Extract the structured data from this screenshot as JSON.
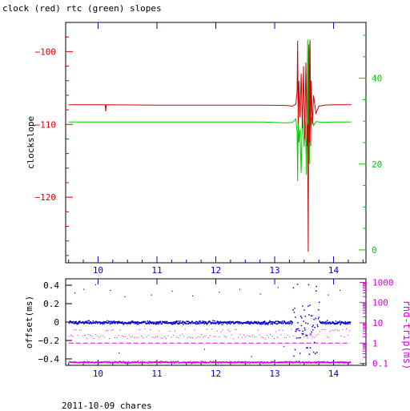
{
  "title": "clock (red) rtc (green) slopes",
  "footer": "2011-10-09 chares",
  "colors": {
    "red": "#d00000",
    "green": "#00cc00",
    "blue": "#0000cc",
    "magenta": "#dd00dd",
    "frame": "#000000"
  },
  "chart_data": [
    {
      "type": "line",
      "name": "slopes",
      "ylabel": "clockslope",
      "xlim": [
        9.45,
        14.55
      ],
      "ylim": [
        -129.0,
        -96.0
      ],
      "y2lim": [
        -3.0,
        53.0
      ],
      "x_ticks": [
        10,
        11,
        12,
        13,
        14
      ],
      "x_tick_labels": [
        "10",
        "11",
        "12",
        "13",
        "14"
      ],
      "y_ticks": [
        -100,
        -110,
        -120
      ],
      "y_tick_labels": [
        "−100",
        "−110",
        "−120"
      ],
      "y2_ticks": [
        40,
        20,
        0
      ],
      "y2_tick_labels": [
        "40",
        "20",
        "0"
      ],
      "series": [
        {
          "name": "clock",
          "color": "red",
          "axis": "left",
          "points": [
            [
              9.5,
              -107.3
            ],
            [
              10.0,
              -107.3
            ],
            [
              10.12,
              -107.3
            ],
            [
              10.13,
              -108.2
            ],
            [
              10.14,
              -107.3
            ],
            [
              11.0,
              -107.35
            ],
            [
              12.0,
              -107.35
            ],
            [
              12.8,
              -107.35
            ],
            [
              13.2,
              -107.4
            ],
            [
              13.3,
              -107.5
            ],
            [
              13.36,
              -107.2
            ],
            [
              13.38,
              -105.5
            ],
            [
              13.39,
              -98.5
            ],
            [
              13.4,
              -110.0
            ],
            [
              13.41,
              -104.0
            ],
            [
              13.43,
              -109.0
            ],
            [
              13.45,
              -103.0
            ],
            [
              13.47,
              -110.5
            ],
            [
              13.49,
              -102.0
            ],
            [
              13.51,
              -112.0
            ],
            [
              13.53,
              -101.5
            ],
            [
              13.55,
              -113.0
            ],
            [
              13.56,
              -110.0
            ],
            [
              13.57,
              -127.5
            ],
            [
              13.58,
              -99.0
            ],
            [
              13.59,
              -112.5
            ],
            [
              13.6,
              -98.5
            ],
            [
              13.61,
              -113.0
            ],
            [
              13.62,
              -104.0
            ],
            [
              13.64,
              -110.0
            ],
            [
              13.66,
              -106.0
            ],
            [
              13.7,
              -108.5
            ],
            [
              13.75,
              -107.5
            ],
            [
              13.85,
              -107.35
            ],
            [
              14.0,
              -107.3
            ],
            [
              14.3,
              -107.3
            ]
          ]
        },
        {
          "name": "rtc",
          "color": "green",
          "axis": "right",
          "points": [
            [
              9.5,
              29.8
            ],
            [
              10.0,
              29.8
            ],
            [
              11.0,
              29.8
            ],
            [
              12.0,
              29.8
            ],
            [
              12.8,
              29.8
            ],
            [
              13.2,
              29.6
            ],
            [
              13.3,
              29.7
            ],
            [
              13.36,
              30.5
            ],
            [
              13.38,
              27.5
            ],
            [
              13.39,
              16.0
            ],
            [
              13.4,
              31.5
            ],
            [
              13.41,
              25.0
            ],
            [
              13.43,
              28.0
            ],
            [
              13.45,
              18.0
            ],
            [
              13.47,
              32.0
            ],
            [
              13.5,
              24.0
            ],
            [
              13.52,
              30.0
            ],
            [
              13.54,
              17.5
            ],
            [
              13.56,
              49.0
            ],
            [
              13.57,
              15.0
            ],
            [
              13.58,
              47.0
            ],
            [
              13.59,
              20.0
            ],
            [
              13.6,
              49.0
            ],
            [
              13.61,
              28.0
            ],
            [
              13.63,
              31.0
            ],
            [
              13.66,
              29.0
            ],
            [
              13.7,
              29.9
            ],
            [
              13.8,
              29.7
            ],
            [
              14.0,
              29.8
            ],
            [
              14.3,
              29.8
            ]
          ]
        }
      ]
    },
    {
      "type": "scatter",
      "name": "offsets",
      "ylabel": "offset(ms)",
      "y2label": "rnd-trip(ms)",
      "y2scale": "log",
      "xlim": [
        9.45,
        14.55
      ],
      "ylim": [
        -0.47,
        0.47
      ],
      "y2lim": [
        0.08,
        1500
      ],
      "x_ticks": [
        10,
        11,
        12,
        13,
        14
      ],
      "x_tick_labels": [
        "10",
        "11",
        "12",
        "13",
        "14"
      ],
      "y_ticks": [
        0.4,
        0.2,
        0,
        -0.2,
        -0.4
      ],
      "y_tick_labels": [
        "0.4",
        "0.2",
        "0",
        "−0.2",
        "−0.4"
      ],
      "y2_ticks": [
        1000,
        100,
        10,
        1,
        0.1
      ],
      "y2_tick_labels": [
        "1000",
        "100",
        "10",
        "1",
        "0.1"
      ],
      "series": [
        {
          "name": "offset",
          "color": "blue",
          "axis": "left",
          "baseline": 0.0,
          "noise": 0.012,
          "burst_x": [
            13.3,
            13.75
          ],
          "burst_range": [
            -0.45,
            0.45
          ],
          "outliers": [
            [
              9.6,
              0.32
            ],
            [
              9.75,
              0.36
            ],
            [
              9.95,
              0.41
            ],
            [
              10.2,
              0.35
            ],
            [
              10.45,
              0.28
            ],
            [
              10.9,
              0.3
            ],
            [
              11.25,
              0.34
            ],
            [
              11.6,
              0.29
            ],
            [
              12.05,
              0.33
            ],
            [
              12.4,
              0.36
            ],
            [
              12.75,
              0.31
            ],
            [
              13.05,
              0.38
            ],
            [
              13.9,
              0.3
            ],
            [
              14.1,
              0.35
            ],
            [
              10.35,
              -0.33
            ],
            [
              11.8,
              -0.29
            ],
            [
              12.6,
              -0.37
            ],
            [
              13.15,
              -0.26
            ]
          ]
        },
        {
          "name": "rnd-trip",
          "color": "magenta",
          "axis": "right",
          "bands": [
            0.12,
            1.0,
            2.0,
            4.5
          ],
          "band_weights": [
            0.6,
            0.25,
            0.1,
            0.05
          ],
          "dashed_level": 1.0
        }
      ]
    }
  ]
}
